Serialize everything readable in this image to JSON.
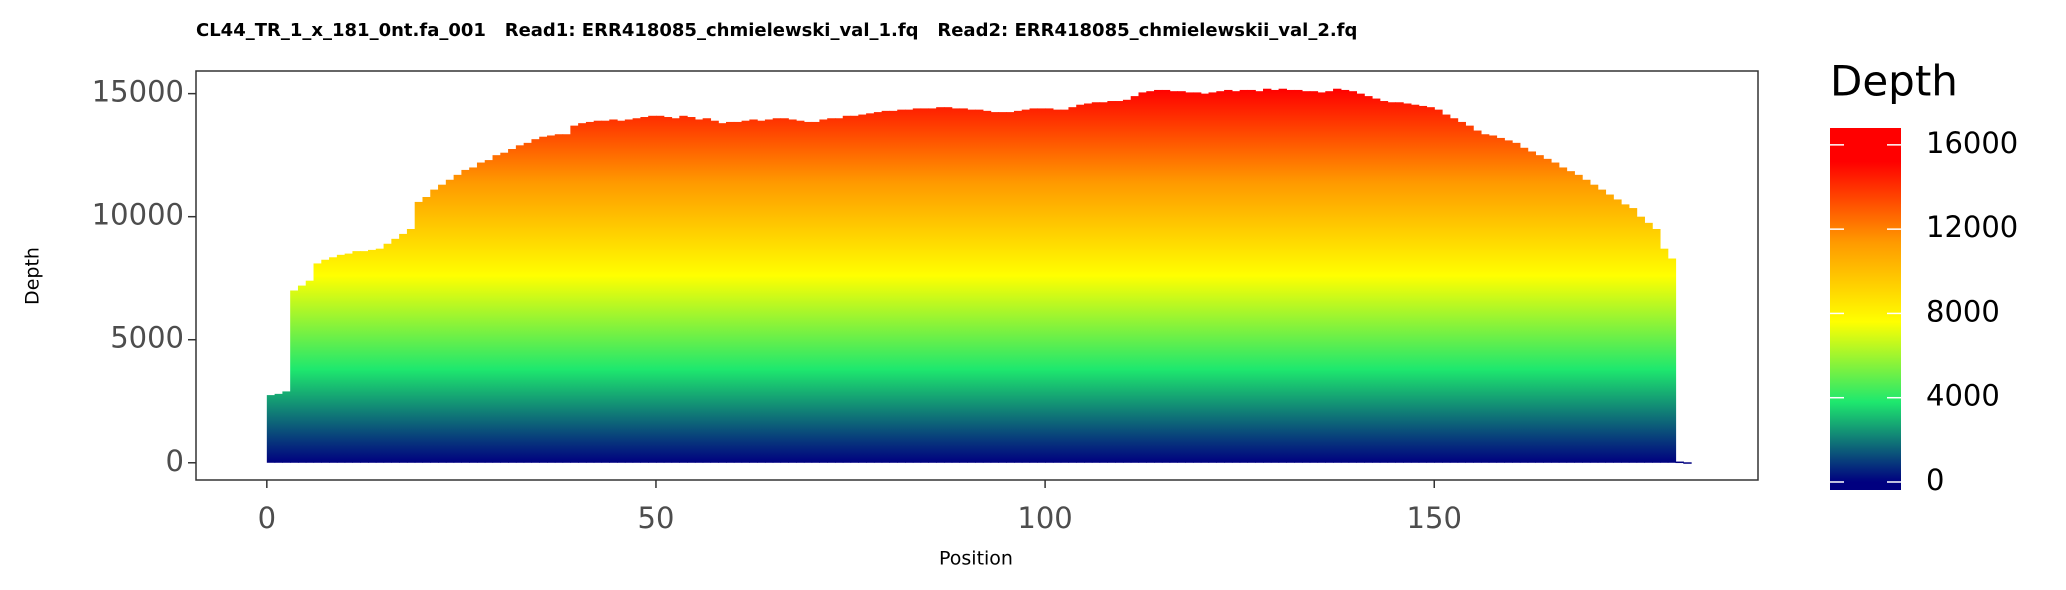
{
  "chart_data": {
    "type": "bar",
    "title": "CL44_TR_1_x_181_0nt.fa_001   Read1: ERR418085_chmielewski_val_1.fq   Read2: ERR418085_chmielewskii_val_2.fq",
    "x_label": "Position",
    "y_label": "Depth",
    "legend_title": "Depth",
    "x": [
      0,
      1,
      2,
      3,
      4,
      5,
      6,
      7,
      8,
      9,
      10,
      11,
      12,
      13,
      14,
      15,
      16,
      17,
      18,
      19,
      20,
      21,
      22,
      23,
      24,
      25,
      26,
      27,
      28,
      29,
      30,
      31,
      32,
      33,
      34,
      35,
      36,
      37,
      38,
      39,
      40,
      41,
      42,
      43,
      44,
      45,
      46,
      47,
      48,
      49,
      50,
      51,
      52,
      53,
      54,
      55,
      56,
      57,
      58,
      59,
      60,
      61,
      62,
      63,
      64,
      65,
      66,
      67,
      68,
      69,
      70,
      71,
      72,
      73,
      74,
      75,
      76,
      77,
      78,
      79,
      80,
      81,
      82,
      83,
      84,
      85,
      86,
      87,
      88,
      89,
      90,
      91,
      92,
      93,
      94,
      95,
      96,
      97,
      98,
      99,
      100,
      101,
      102,
      103,
      104,
      105,
      106,
      107,
      108,
      109,
      110,
      111,
      112,
      113,
      114,
      115,
      116,
      117,
      118,
      119,
      120,
      121,
      122,
      123,
      124,
      125,
      126,
      127,
      128,
      129,
      130,
      131,
      132,
      133,
      134,
      135,
      136,
      137,
      138,
      139,
      140,
      141,
      142,
      143,
      144,
      145,
      146,
      147,
      148,
      149,
      150,
      151,
      152,
      153,
      154,
      155,
      156,
      157,
      158,
      159,
      160,
      161,
      162,
      163,
      164,
      165,
      166,
      167,
      168,
      169,
      170,
      171,
      172,
      173,
      174,
      175,
      176,
      177,
      178,
      179,
      180,
      181,
      182
    ],
    "values": [
      2750,
      2800,
      2900,
      7000,
      7200,
      7400,
      8100,
      8250,
      8350,
      8450,
      8500,
      8600,
      8600,
      8650,
      8700,
      8900,
      9100,
      9300,
      9500,
      10600,
      10800,
      11100,
      11300,
      11500,
      11700,
      11900,
      12000,
      12200,
      12300,
      12500,
      12600,
      12750,
      12900,
      13000,
      13150,
      13250,
      13300,
      13350,
      13350,
      13700,
      13800,
      13850,
      13900,
      13900,
      13950,
      13900,
      13950,
      14000,
      14050,
      14100,
      14100,
      14050,
      14000,
      14100,
      14050,
      13950,
      14000,
      13900,
      13800,
      13850,
      13850,
      13900,
      13950,
      13900,
      13950,
      14000,
      14000,
      13950,
      13900,
      13850,
      13850,
      13950,
      14000,
      14000,
      14100,
      14100,
      14150,
      14200,
      14250,
      14300,
      14300,
      14350,
      14350,
      14400,
      14400,
      14400,
      14450,
      14450,
      14400,
      14400,
      14350,
      14350,
      14300,
      14250,
      14250,
      14250,
      14300,
      14350,
      14400,
      14400,
      14400,
      14350,
      14350,
      14450,
      14550,
      14600,
      14650,
      14650,
      14700,
      14700,
      14750,
      14900,
      15050,
      15100,
      15150,
      15150,
      15100,
      15100,
      15050,
      15050,
      15000,
      15050,
      15100,
      15150,
      15100,
      15150,
      15150,
      15100,
      15200,
      15150,
      15200,
      15150,
      15150,
      15100,
      15100,
      15050,
      15100,
      15200,
      15150,
      15100,
      15000,
      14900,
      14800,
      14700,
      14650,
      14650,
      14600,
      14550,
      14500,
      14450,
      14350,
      14150,
      14000,
      13850,
      13700,
      13500,
      13350,
      13300,
      13200,
      13100,
      13000,
      12800,
      12650,
      12500,
      12350,
      12200,
      12000,
      11850,
      11700,
      11500,
      11300,
      11100,
      10900,
      10700,
      10500,
      10350,
      10000,
      9750,
      9500,
      8700,
      8300,
      50,
      20
    ],
    "xlim": [
      -9.1,
      191.6
    ],
    "ylim": [
      -700,
      15920
    ],
    "xticks": [
      0,
      50,
      100,
      150
    ],
    "yticks": [
      0,
      5000,
      10000,
      15000
    ],
    "colors": [
      "#000080",
      "#1ee86e",
      "#ffff00",
      "#ff9900",
      "#ff0000"
    ],
    "fill_lim": [
      0,
      15200
    ],
    "colorbar_lim": [
      -380,
      16800
    ],
    "colorbar_ticks": [
      0,
      4000,
      8000,
      12000,
      16000
    ],
    "grid": false
  }
}
